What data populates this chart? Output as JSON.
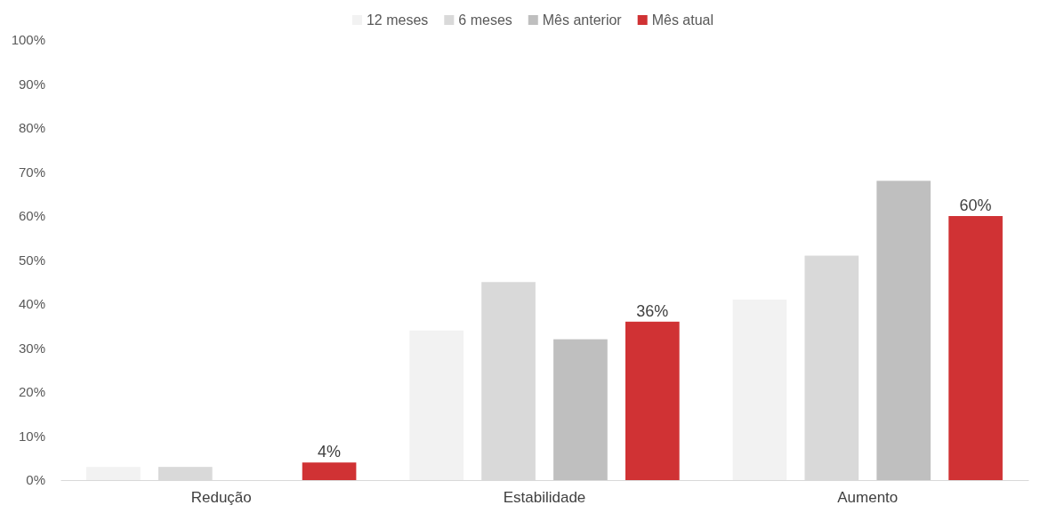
{
  "chart_data": {
    "type": "bar",
    "categories": [
      "Redução",
      "Estabilidade",
      "Aumento"
    ],
    "series": [
      {
        "name": "12 meses",
        "color": "#f2f2f2",
        "values": [
          3,
          34,
          41
        ]
      },
      {
        "name": "6 meses",
        "color": "#d9d9d9",
        "values": [
          3,
          45,
          51
        ]
      },
      {
        "name": "Mês anterior",
        "color": "#bfbfbf",
        "values": [
          0,
          32,
          68
        ]
      },
      {
        "name": "Mês atual",
        "color": "#d03234",
        "values": [
          4,
          36,
          60
        ],
        "value_labels": [
          "4%",
          "36%",
          "60%"
        ]
      }
    ],
    "ylim": [
      0,
      100
    ],
    "yticks": [
      {
        "value": 0,
        "label": "0%"
      },
      {
        "value": 10,
        "label": "10%"
      },
      {
        "value": 20,
        "label": "20%"
      },
      {
        "value": 30,
        "label": "30%"
      },
      {
        "value": 40,
        "label": "40%"
      },
      {
        "value": 50,
        "label": "50%"
      },
      {
        "value": 60,
        "label": "60%"
      },
      {
        "value": 70,
        "label": "70%"
      },
      {
        "value": 80,
        "label": "80%"
      },
      {
        "value": 90,
        "label": "90%"
      },
      {
        "value": 100,
        "label": "100%"
      }
    ],
    "grid": false,
    "legend": "top"
  }
}
